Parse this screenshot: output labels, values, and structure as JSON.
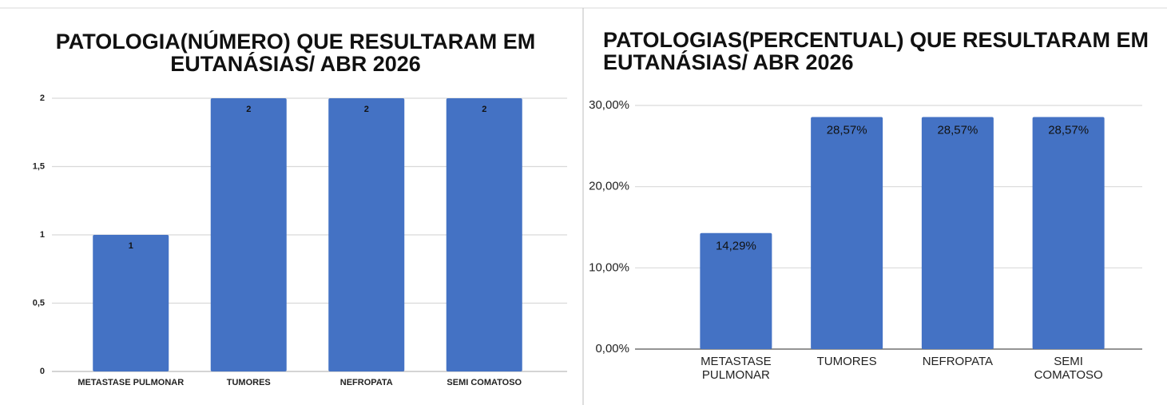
{
  "chart_data": [
    {
      "type": "bar",
      "title": "PATOLOGIA(NÚMERO) QUE RESULTARAM EM EUTANÁSIAS/ ABR 2026",
      "categories": [
        "METASTASE PULMONAR",
        "TUMORES",
        "NEFROPATA",
        "SEMI COMATOSO"
      ],
      "values": [
        1,
        2,
        2,
        2
      ],
      "color": "#4472c4",
      "ylim": [
        0,
        2
      ],
      "yticks": [
        0,
        {
          "value": 0.5,
          "label": "0,5"
        },
        1,
        {
          "value": 1.5,
          "label": "1,5"
        },
        2
      ],
      "grid": true
    },
    {
      "type": "bar",
      "title": "PATOLOGIAS(PERCENTUAL) QUE RESULTARAM EM EUTANÁSIAS/ ABR 2026",
      "categories": [
        "METASTASE PULMONAR",
        "TUMORES",
        "NEFROPATA",
        "SEMI COMATOSO"
      ],
      "values": [
        14.29,
        28.57,
        28.57,
        28.57
      ],
      "value_labels": [
        "14,29%",
        "28,57%",
        "28,57%",
        "28,57%"
      ],
      "color": "#4472c4",
      "ylim": [
        0,
        30
      ],
      "yticks": [
        {
          "value": 0,
          "label": "0,00%"
        },
        {
          "value": 10,
          "label": "10,00%"
        },
        {
          "value": 20,
          "label": "20,00%"
        },
        {
          "value": 30,
          "label": "30,00%"
        }
      ],
      "grid": true
    }
  ]
}
